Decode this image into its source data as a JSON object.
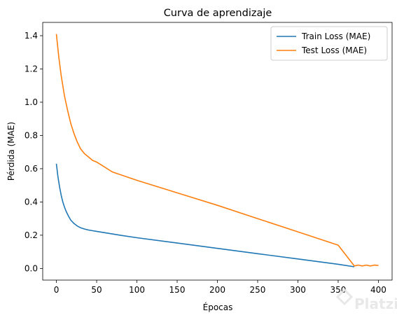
{
  "watermark": {
    "text": "Platzi",
    "icon": "platzi-logo-icon"
  },
  "chart_data": {
    "type": "line",
    "title": "Curva de aprendizaje",
    "xlabel": "Épocas",
    "ylabel": "Pérdida (MAE)",
    "xlim": [
      -17,
      417
    ],
    "ylim": [
      -0.07,
      1.48
    ],
    "xticks": [
      0,
      50,
      100,
      150,
      200,
      250,
      300,
      350,
      400
    ],
    "yticks": [
      0.0,
      0.2,
      0.4,
      0.6,
      0.8,
      1.0,
      1.2,
      1.4
    ],
    "ytick_labels": [
      "0.0",
      "0.2",
      "0.4",
      "0.6",
      "0.8",
      "1.0",
      "1.2",
      "1.4"
    ],
    "grid": false,
    "legend_position": "top-right",
    "series": [
      {
        "name": "Train Loss (MAE)",
        "color": "#1f77b4",
        "x": [
          0,
          2,
          4,
          6,
          8,
          10,
          12,
          15,
          18,
          22,
          26,
          30,
          35,
          40,
          45,
          50,
          60,
          80,
          100,
          150,
          200,
          250,
          300,
          350,
          370
        ],
        "y": [
          0.63,
          0.55,
          0.49,
          0.44,
          0.4,
          0.37,
          0.345,
          0.315,
          0.29,
          0.27,
          0.255,
          0.245,
          0.237,
          0.231,
          0.227,
          0.223,
          0.215,
          0.199,
          0.185,
          0.153,
          0.121,
          0.089,
          0.057,
          0.025,
          0.01
        ]
      },
      {
        "name": "Test Loss (MAE)",
        "color": "#ff7f0e",
        "x": [
          0,
          3,
          6,
          10,
          14,
          18,
          22,
          26,
          30,
          35,
          40,
          45,
          50,
          60,
          68,
          70,
          100,
          150,
          200,
          250,
          300,
          350,
          370,
          375,
          380,
          385,
          390,
          395,
          400
        ],
        "y": [
          1.41,
          1.27,
          1.16,
          1.04,
          0.95,
          0.87,
          0.81,
          0.76,
          0.72,
          0.69,
          0.67,
          0.65,
          0.64,
          0.61,
          0.585,
          0.58,
          0.53,
          0.455,
          0.38,
          0.3,
          0.22,
          0.14,
          0.015,
          0.02,
          0.015,
          0.02,
          0.015,
          0.02,
          0.018
        ]
      }
    ]
  }
}
